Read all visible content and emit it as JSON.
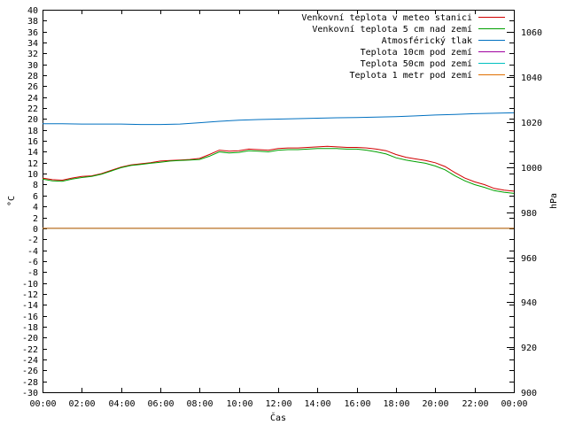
{
  "chart_data": {
    "type": "line",
    "title": "",
    "xlabel": "Čas",
    "ylabel_left": "°C",
    "ylabel_right": "hPa",
    "ylim_left": [
      -30,
      40
    ],
    "ylim_right": [
      900,
      1070
    ],
    "xlim_hours": [
      0,
      24
    ],
    "x_ticks": [
      "00:00",
      "02:00",
      "04:00",
      "06:00",
      "08:00",
      "10:00",
      "12:00",
      "14:00",
      "16:00",
      "18:00",
      "20:00",
      "22:00",
      "00:00"
    ],
    "y_left_ticks": [
      40,
      38,
      36,
      34,
      32,
      30,
      28,
      26,
      24,
      22,
      20,
      18,
      16,
      14,
      12,
      10,
      8,
      6,
      4,
      2,
      0,
      -2,
      -4,
      -6,
      -8,
      -10,
      -12,
      -14,
      -16,
      -18,
      -20,
      -22,
      -24,
      -26,
      -28,
      -30
    ],
    "y_right_ticks": [
      1060,
      1040,
      1020,
      1000,
      980,
      960,
      940,
      920,
      900
    ],
    "grid": false,
    "legend_position": "top-right",
    "series": [
      {
        "name": "Venkovní teplota v meteo stanici",
        "color": "#d00000",
        "axis": "left",
        "x": [
          0,
          0.5,
          1,
          1.5,
          2,
          2.5,
          3,
          3.5,
          4,
          4.5,
          5,
          5.5,
          6,
          6.5,
          7,
          7.5,
          8,
          8.5,
          9,
          9.5,
          10,
          10.5,
          11,
          11.5,
          12,
          12.5,
          13,
          13.5,
          14,
          14.5,
          15,
          15.5,
          16,
          16.5,
          17,
          17.5,
          18,
          18.5,
          19,
          19.5,
          20,
          20.5,
          21,
          21.5,
          22,
          22.5,
          23,
          23.5,
          24
        ],
        "values": [
          9.2,
          8.9,
          8.8,
          9.2,
          9.5,
          9.6,
          10.0,
          10.6,
          11.2,
          11.6,
          11.8,
          12.0,
          12.3,
          12.4,
          12.5,
          12.6,
          12.8,
          13.5,
          14.3,
          14.1,
          14.2,
          14.5,
          14.4,
          14.3,
          14.6,
          14.7,
          14.7,
          14.8,
          14.9,
          15.0,
          14.9,
          14.8,
          14.8,
          14.7,
          14.5,
          14.2,
          13.5,
          13.0,
          12.7,
          12.4,
          12.0,
          11.3,
          10.2,
          9.2,
          8.5,
          8.0,
          7.3,
          7.0,
          6.8
        ]
      },
      {
        "name": "Venkovní teplota 5 cm nad zemí",
        "color": "#00a000",
        "axis": "left",
        "x": [
          0,
          0.5,
          1,
          1.5,
          2,
          2.5,
          3,
          3.5,
          4,
          4.5,
          5,
          5.5,
          6,
          6.5,
          7,
          7.5,
          8,
          8.5,
          9,
          9.5,
          10,
          10.5,
          11,
          11.5,
          12,
          12.5,
          13,
          13.5,
          14,
          14.5,
          15,
          15.5,
          16,
          16.5,
          17,
          17.5,
          18,
          18.5,
          19,
          19.5,
          20,
          20.5,
          21,
          21.5,
          22,
          22.5,
          23,
          23.5,
          24
        ],
        "values": [
          9.0,
          8.7,
          8.6,
          9.0,
          9.3,
          9.5,
          9.9,
          10.5,
          11.1,
          11.5,
          11.7,
          11.9,
          12.1,
          12.3,
          12.4,
          12.5,
          12.6,
          13.2,
          14.0,
          13.8,
          13.9,
          14.2,
          14.1,
          14.0,
          14.3,
          14.4,
          14.4,
          14.5,
          14.6,
          14.6,
          14.6,
          14.5,
          14.5,
          14.3,
          14.0,
          13.6,
          12.9,
          12.5,
          12.2,
          11.9,
          11.4,
          10.7,
          9.6,
          8.7,
          8.0,
          7.5,
          6.9,
          6.6,
          6.4
        ]
      },
      {
        "name": "Atmosférický tlak",
        "color": "#0070c0",
        "axis": "right",
        "x": [
          0,
          1,
          2,
          3,
          4,
          5,
          6,
          7,
          8,
          9,
          10,
          11,
          12,
          13,
          14,
          15,
          16,
          17,
          18,
          19,
          20,
          21,
          22,
          23,
          24
        ],
        "values": [
          1019.3,
          1019.3,
          1019.2,
          1019.2,
          1019.2,
          1019.0,
          1019.0,
          1019.2,
          1019.8,
          1020.4,
          1020.9,
          1021.2,
          1021.4,
          1021.6,
          1021.8,
          1022.0,
          1022.1,
          1022.3,
          1022.5,
          1022.8,
          1023.2,
          1023.5,
          1023.8,
          1024.0,
          1024.2
        ]
      },
      {
        "name": "Teplota 10cm pod zemí",
        "color": "#a000a0",
        "axis": "left",
        "x": [
          0,
          24
        ],
        "values": [
          0,
          0
        ]
      },
      {
        "name": "Teplota 50cm pod zemí",
        "color": "#00c0c0",
        "axis": "left",
        "x": [
          0,
          24
        ],
        "values": [
          0,
          0
        ]
      },
      {
        "name": "Teplota 1 metr pod zemí",
        "color": "#e07000",
        "axis": "left",
        "x": [
          0,
          24
        ],
        "values": [
          0,
          0
        ]
      }
    ]
  }
}
